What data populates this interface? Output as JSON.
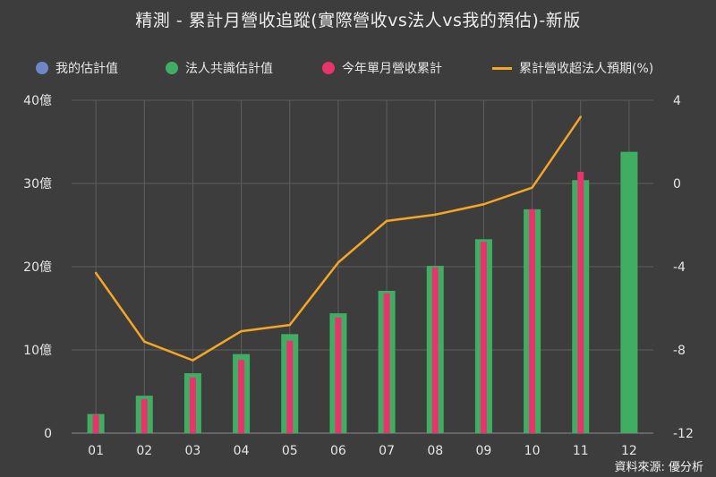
{
  "title": "精測 - 累計月營收追蹤(實際營收vs法人vs我的預估)-新版",
  "source": "資料來源: 優分析",
  "colors": {
    "my_estimate": "#6f86c9",
    "consensus": "#3fae62",
    "actual": "#e8336d",
    "line": "#f5a623",
    "grid": "#5e5e5e",
    "axis_text": "#e6e6e6"
  },
  "legend": [
    {
      "label": "我的估計值",
      "marker": "dot",
      "color": "#6f86c9"
    },
    {
      "label": "法人共識估計值",
      "marker": "dot",
      "color": "#3fae62"
    },
    {
      "label": "今年單月營收累計",
      "marker": "dot",
      "color": "#e8336d"
    },
    {
      "label": "累計營收超法人預期(%)",
      "marker": "line",
      "color": "#f5a623"
    }
  ],
  "chart_data": {
    "type": "bar",
    "categories": [
      "01",
      "02",
      "03",
      "04",
      "05",
      "06",
      "07",
      "08",
      "09",
      "10",
      "11",
      "12"
    ],
    "left_axis": {
      "min": 0,
      "max": 40,
      "ticks": [
        0,
        10,
        20,
        30,
        40
      ],
      "tick_labels": [
        "0",
        "10億",
        "20億",
        "30億",
        "40億"
      ]
    },
    "right_axis": {
      "min": -12,
      "max": 4,
      "ticks": [
        -12,
        -8,
        -4,
        0,
        4
      ],
      "tick_labels": [
        "-12",
        "-8",
        "-4",
        "0",
        "4"
      ]
    },
    "grid": true,
    "legend_position": "top",
    "series": [
      {
        "name": "法人共識估計值",
        "kind": "bar",
        "axis": "left",
        "values": [
          2.3,
          4.5,
          7.2,
          9.5,
          11.9,
          14.4,
          17.1,
          20.1,
          23.3,
          26.9,
          30.4,
          33.8
        ]
      },
      {
        "name": "今年單月營收累計",
        "kind": "bar",
        "axis": "left",
        "values": [
          2.2,
          4.1,
          6.7,
          8.8,
          11.1,
          13.9,
          16.8,
          19.9,
          23.0,
          26.9,
          31.4,
          null
        ]
      },
      {
        "name": "累計營收超法人預期(%)",
        "kind": "line",
        "axis": "right",
        "values": [
          -4.3,
          -7.6,
          -8.5,
          -7.1,
          -6.8,
          -3.8,
          -1.8,
          -1.5,
          -1.0,
          -0.2,
          3.2,
          null
        ]
      }
    ]
  }
}
